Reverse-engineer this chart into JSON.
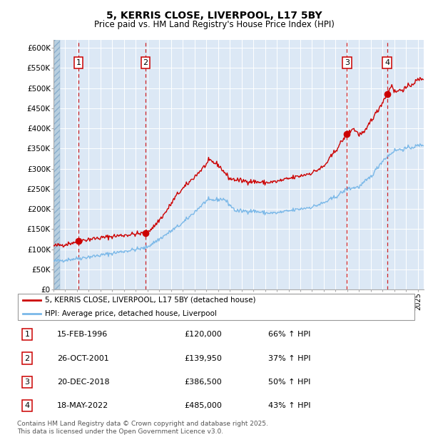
{
  "title": "5, KERRIS CLOSE, LIVERPOOL, L17 5BY",
  "subtitle": "Price paid vs. HM Land Registry's House Price Index (HPI)",
  "xlim_start": 1994.0,
  "xlim_end": 2025.5,
  "ylim_min": 0,
  "ylim_max": 620000,
  "yticks": [
    0,
    50000,
    100000,
    150000,
    200000,
    250000,
    300000,
    350000,
    400000,
    450000,
    500000,
    550000,
    600000
  ],
  "ytick_labels": [
    "£0",
    "£50K",
    "£100K",
    "£150K",
    "£200K",
    "£250K",
    "£300K",
    "£350K",
    "£400K",
    "£450K",
    "£500K",
    "£550K",
    "£600K"
  ],
  "sale_dates": [
    1996.12,
    2001.82,
    2018.97,
    2022.38
  ],
  "sale_prices": [
    120000,
    139950,
    386500,
    485000
  ],
  "sale_labels": [
    "1",
    "2",
    "3",
    "4"
  ],
  "hpi_line_color": "#7ab8e8",
  "price_line_color": "#cc0000",
  "sale_marker_color": "#cc0000",
  "dashed_line_color": "#cc0000",
  "plot_bg_color": "#dce8f5",
  "grid_color": "#ffffff",
  "legend_entries": [
    "5, KERRIS CLOSE, LIVERPOOL, L17 5BY (detached house)",
    "HPI: Average price, detached house, Liverpool"
  ],
  "legend_colors": [
    "#cc0000",
    "#7ab8e8"
  ],
  "table_data": [
    [
      "1",
      "15-FEB-1996",
      "£120,000",
      "66% ↑ HPI"
    ],
    [
      "2",
      "26-OCT-2001",
      "£139,950",
      "37% ↑ HPI"
    ],
    [
      "3",
      "20-DEC-2018",
      "£386,500",
      "50% ↑ HPI"
    ],
    [
      "4",
      "18-MAY-2022",
      "£485,000",
      "43% ↑ HPI"
    ]
  ],
  "footnote": "Contains HM Land Registry data © Crown copyright and database right 2025.\nThis data is licensed under the Open Government Licence v3.0."
}
